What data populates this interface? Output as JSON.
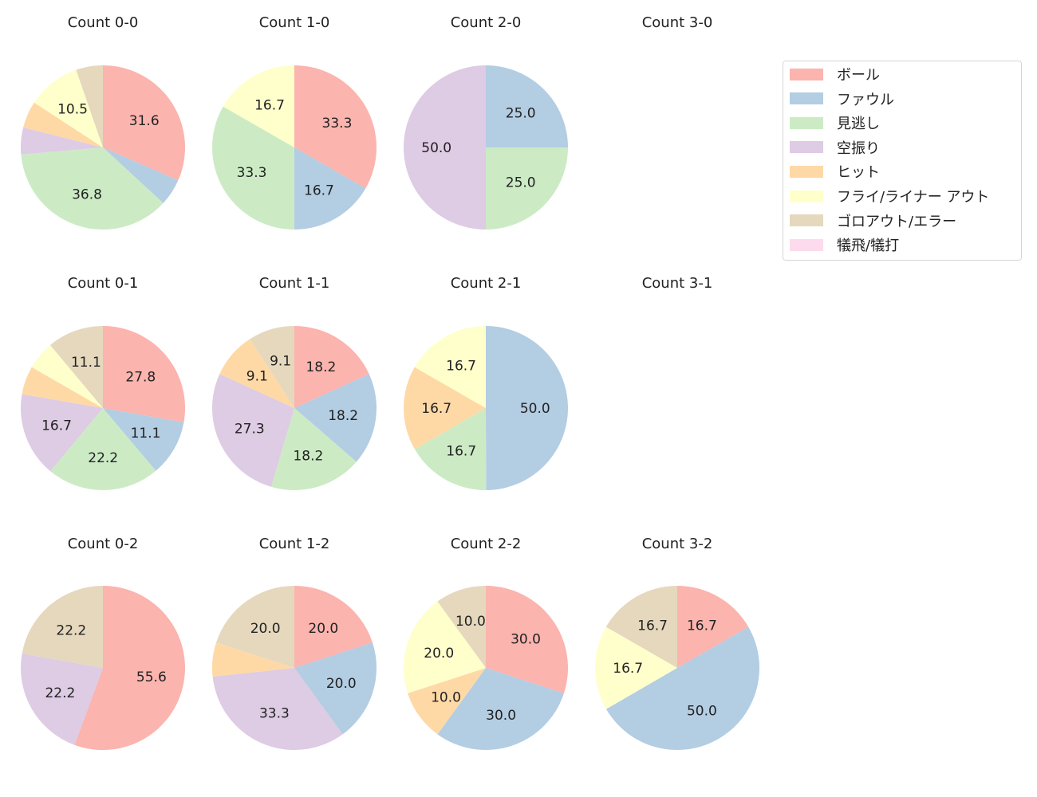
{
  "chart_data": {
    "type": "pie",
    "start_angle": 90,
    "direction": "clockwise",
    "legend": {
      "placement": "top-right",
      "entries": [
        "ボール",
        "ファウル",
        "見逃し",
        "空振り",
        "ヒット",
        "フライ/ライナー アウト",
        "ゴロアウト/エラー",
        "犠飛/犠打"
      ]
    },
    "colors": [
      "#fbb4ae",
      "#b3cde3",
      "#ccebc5",
      "#decbe4",
      "#fed9a6",
      "#ffffcc",
      "#e5d8bd",
      "#fddaec"
    ],
    "pies": [
      {
        "title": "Count 0-0",
        "values": [
          31.6,
          5.3,
          36.8,
          5.3,
          5.3,
          10.5,
          5.3,
          0
        ],
        "labels": [
          "31.6",
          "",
          "36.8",
          "",
          "",
          "10.5",
          "",
          ""
        ]
      },
      {
        "title": "Count 1-0",
        "values": [
          33.3,
          16.7,
          33.3,
          0,
          0,
          16.7,
          0,
          0
        ],
        "labels": [
          "33.3",
          "16.7",
          "33.3",
          "",
          "",
          "16.7",
          "",
          ""
        ]
      },
      {
        "title": "Count 2-0",
        "values": [
          0,
          25.0,
          25.0,
          50.0,
          0,
          0,
          0,
          0
        ],
        "labels": [
          "",
          "25.0",
          "25.0",
          "50.0",
          "",
          "",
          "",
          ""
        ]
      },
      {
        "title": "Count 3-0",
        "values": [],
        "labels": []
      },
      {
        "title": "Count 0-1",
        "values": [
          27.8,
          11.1,
          22.2,
          16.7,
          5.6,
          5.6,
          11.1,
          0
        ],
        "labels": [
          "27.8",
          "11.1",
          "22.2",
          "16.7",
          "",
          "",
          "11.1",
          ""
        ]
      },
      {
        "title": "Count 1-1",
        "values": [
          18.2,
          18.2,
          18.2,
          27.3,
          9.1,
          0,
          9.1,
          0
        ],
        "labels": [
          "18.2",
          "18.2",
          "18.2",
          "27.3",
          "9.1",
          "",
          "9.1",
          ""
        ]
      },
      {
        "title": "Count 2-1",
        "values": [
          0,
          50.0,
          16.7,
          0,
          16.7,
          16.7,
          0,
          0
        ],
        "labels": [
          "",
          "50.0",
          "16.7",
          "",
          "16.7",
          "16.7",
          "",
          ""
        ]
      },
      {
        "title": "Count 3-1",
        "values": [],
        "labels": []
      },
      {
        "title": "Count 0-2",
        "values": [
          55.6,
          0,
          0,
          22.2,
          0,
          0,
          22.2,
          0
        ],
        "labels": [
          "55.6",
          "",
          "",
          "22.2",
          "",
          "",
          "22.2",
          ""
        ]
      },
      {
        "title": "Count 1-2",
        "values": [
          20.0,
          20.0,
          0,
          33.3,
          6.7,
          0,
          20.0,
          0
        ],
        "labels": [
          "20.0",
          "20.0",
          "",
          "33.3",
          "",
          "",
          "20.0",
          ""
        ]
      },
      {
        "title": "Count 2-2",
        "values": [
          30.0,
          30.0,
          0,
          0,
          10.0,
          20.0,
          10.0,
          0
        ],
        "labels": [
          "30.0",
          "30.0",
          "",
          "",
          "10.0",
          "20.0",
          "10.0",
          ""
        ]
      },
      {
        "title": "Count 3-2",
        "values": [
          16.7,
          50.0,
          0,
          0,
          0,
          16.7,
          16.7,
          0
        ],
        "labels": [
          "16.7",
          "50.0",
          "",
          "",
          "",
          "16.7",
          "16.7",
          ""
        ]
      }
    ]
  }
}
